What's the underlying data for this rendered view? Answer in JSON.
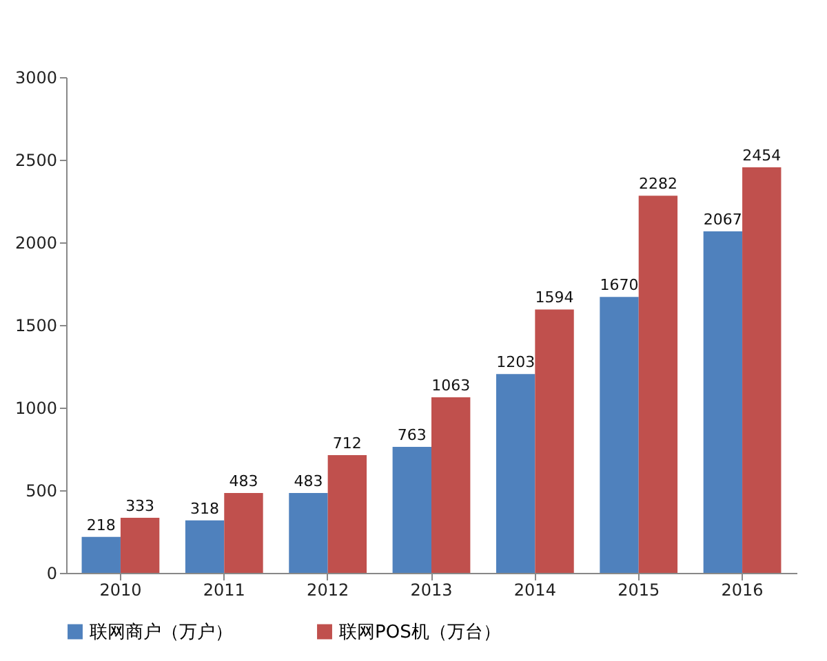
{
  "chart_data": {
    "type": "bar",
    "categories": [
      "2010",
      "2011",
      "2012",
      "2013",
      "2014",
      "2015",
      "2016"
    ],
    "series": [
      {
        "name": "联网商户（万户）",
        "color": "#4f81bd",
        "values": [
          218,
          318,
          483,
          763,
          1203,
          1670,
          2067
        ]
      },
      {
        "name": "联网POS机（万台）",
        "color": "#c0504d",
        "values": [
          333,
          483,
          712,
          1063,
          1594,
          2282,
          2454
        ]
      }
    ],
    "ylim": [
      0,
      3000
    ],
    "yticks": [
      0,
      500,
      1000,
      1500,
      2000,
      2500,
      3000
    ],
    "grid": false,
    "legend": "bottom",
    "data_labels": true
  }
}
